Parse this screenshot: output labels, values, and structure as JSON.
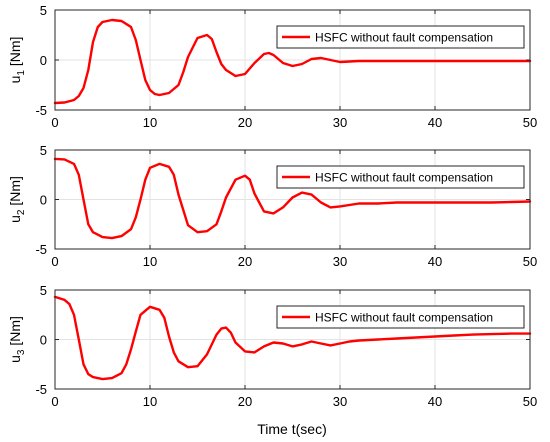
{
  "chart_data": [
    {
      "type": "line",
      "ylabel_main": "u",
      "ylabel_sub": "1",
      "ylabel_unit": " [Nm]",
      "xlim": [
        0,
        50
      ],
      "ylim": [
        -5,
        5
      ],
      "xticks": [
        "0",
        "10",
        "20",
        "30",
        "40",
        "50"
      ],
      "yticks": [
        "5",
        "0",
        "-5"
      ],
      "grid": true,
      "legend_position": "top-right",
      "series": [
        {
          "name": "HSFC without fault compensation",
          "color": "#ff0000",
          "x": [
            0,
            1,
            2,
            2.5,
            3,
            3.5,
            4,
            4.5,
            5,
            6,
            7,
            8,
            8.5,
            9,
            9.5,
            10,
            10.5,
            11,
            12,
            13,
            13.5,
            14,
            15,
            16,
            16.5,
            17,
            17.5,
            18,
            19,
            20,
            21,
            22,
            22.5,
            23,
            24,
            25,
            26,
            27,
            28,
            29,
            30,
            32,
            34,
            36,
            38,
            40,
            42,
            44,
            46,
            48,
            50
          ],
          "y": [
            -4.3,
            -4.25,
            -4.0,
            -3.6,
            -2.8,
            -1.0,
            1.8,
            3.3,
            3.8,
            4.0,
            3.9,
            3.3,
            2.0,
            0.0,
            -2.0,
            -3.0,
            -3.4,
            -3.5,
            -3.3,
            -2.5,
            -1.2,
            0.3,
            2.2,
            2.5,
            2.1,
            0.8,
            -0.4,
            -1.0,
            -1.6,
            -1.4,
            -0.3,
            0.6,
            0.7,
            0.5,
            -0.3,
            -0.6,
            -0.4,
            0.1,
            0.2,
            0.0,
            -0.2,
            -0.1,
            -0.1,
            -0.1,
            -0.1,
            -0.1,
            -0.1,
            -0.1,
            -0.1,
            -0.1,
            -0.1
          ]
        }
      ]
    },
    {
      "type": "line",
      "ylabel_main": "u",
      "ylabel_sub": "2",
      "ylabel_unit": " [Nm]",
      "xlim": [
        0,
        50
      ],
      "ylim": [
        -5,
        5
      ],
      "xticks": [
        "0",
        "10",
        "20",
        "30",
        "40",
        "50"
      ],
      "yticks": [
        "5",
        "0",
        "-5"
      ],
      "grid": true,
      "legend_position": "top-right",
      "series": [
        {
          "name": "HSFC without fault compensation",
          "color": "#ff0000",
          "x": [
            0,
            1,
            2,
            2.5,
            3,
            3.5,
            4,
            5,
            6,
            7,
            8,
            8.5,
            9,
            9.5,
            10,
            11,
            12,
            12.5,
            13,
            14,
            15,
            16,
            17,
            17.5,
            18,
            19,
            20,
            20.5,
            21,
            22,
            23,
            24,
            25,
            26,
            27,
            28,
            29,
            30,
            32,
            34,
            36,
            38,
            40,
            42,
            44,
            46,
            48,
            50
          ],
          "y": [
            4.1,
            4.05,
            3.6,
            2.5,
            0.0,
            -2.5,
            -3.3,
            -3.8,
            -3.9,
            -3.7,
            -3.0,
            -1.8,
            0.0,
            2.0,
            3.2,
            3.6,
            3.3,
            2.5,
            0.5,
            -2.6,
            -3.3,
            -3.2,
            -2.5,
            -1.2,
            0.2,
            2.0,
            2.4,
            2.0,
            0.6,
            -1.2,
            -1.4,
            -0.8,
            0.2,
            0.7,
            0.5,
            -0.3,
            -0.8,
            -0.7,
            -0.4,
            -0.4,
            -0.3,
            -0.3,
            -0.3,
            -0.3,
            -0.3,
            -0.3,
            -0.25,
            -0.2
          ]
        }
      ]
    },
    {
      "type": "line",
      "ylabel_main": "u",
      "ylabel_sub": "3",
      "ylabel_unit": " [Nm]",
      "xlim": [
        0,
        50
      ],
      "ylim": [
        -5,
        5
      ],
      "xticks": [
        "0",
        "10",
        "20",
        "30",
        "40",
        "50"
      ],
      "yticks": [
        "5",
        "0",
        "-5"
      ],
      "grid": true,
      "legend_position": "top-right",
      "series": [
        {
          "name": "HSFC without fault compensation",
          "color": "#ff0000",
          "x": [
            0,
            1,
            1.5,
            2,
            2.5,
            3,
            3.5,
            4,
            5,
            6,
            7,
            7.5,
            8,
            8.5,
            9,
            10,
            11,
            11.5,
            12,
            12.5,
            13,
            14,
            15,
            16,
            17,
            17.5,
            18,
            18.5,
            19,
            20,
            21,
            22,
            23,
            24,
            25,
            26,
            27,
            28,
            29,
            30,
            31,
            32,
            34,
            36,
            38,
            40,
            42,
            44,
            46,
            48,
            50
          ],
          "y": [
            4.3,
            4.0,
            3.6,
            2.5,
            0.0,
            -2.5,
            -3.5,
            -3.8,
            -4.0,
            -3.9,
            -3.4,
            -2.5,
            -1.0,
            0.8,
            2.5,
            3.3,
            3.0,
            2.2,
            0.3,
            -1.3,
            -2.2,
            -2.8,
            -2.7,
            -1.5,
            0.5,
            1.1,
            1.2,
            0.7,
            -0.3,
            -1.2,
            -1.3,
            -0.7,
            -0.3,
            -0.4,
            -0.7,
            -0.5,
            -0.2,
            -0.4,
            -0.6,
            -0.4,
            -0.2,
            -0.1,
            0.0,
            0.1,
            0.2,
            0.3,
            0.4,
            0.5,
            0.55,
            0.6,
            0.6
          ]
        }
      ]
    }
  ],
  "xlabel": "Time t(sec)"
}
